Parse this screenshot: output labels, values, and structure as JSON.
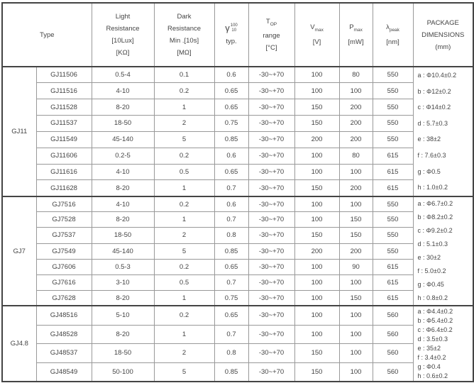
{
  "header": {
    "type": "Type",
    "light_resistance": [
      "Light",
      "Resistance",
      "[10Lux]",
      "[KΩ]"
    ],
    "dark_resistance": [
      "Dark",
      "Resistance",
      "Min .[10s]",
      "[MΩ]"
    ],
    "gamma": {
      "symbol": "γ",
      "sup": "100",
      "sub": "10",
      "label": "typ."
    },
    "top": {
      "symbol": "T",
      "sub": "OP",
      "line2": "range",
      "line3": "[°C]"
    },
    "vmax": {
      "symbol": "V",
      "sub": "max",
      "unit": "[V]"
    },
    "pmax": {
      "symbol": "P",
      "sub": "max",
      "unit": "[mW]"
    },
    "lpeak": {
      "symbol": "λ",
      "sub": "peak",
      "unit": "[nm]"
    },
    "package": [
      "PACKAGE",
      "DIMENSIONS",
      "(mm)"
    ]
  },
  "groups": [
    {
      "name": "GJ11",
      "rows": [
        [
          "GJ11506",
          "0.5-4",
          "0.1",
          "0.6",
          "-30~+70",
          "100",
          "80",
          "550"
        ],
        [
          "GJ11516",
          "4-10",
          "0.2",
          "0.65",
          "-30~+70",
          "100",
          "100",
          "550"
        ],
        [
          "GJ11528",
          "8-20",
          "1",
          "0.65",
          "-30~+70",
          "150",
          "200",
          "550"
        ],
        [
          "GJ11537",
          "18-50",
          "2",
          "0.75",
          "-30~+70",
          "150",
          "200",
          "550"
        ],
        [
          "GJ11549",
          "45-140",
          "5",
          "0.85",
          "-30~+70",
          "200",
          "200",
          "550"
        ],
        [
          "GJ11606",
          "0.2-5",
          "0.2",
          "0.6",
          "-30~+70",
          "100",
          "80",
          "615"
        ],
        [
          "GJ11616",
          "4-10",
          "0.5",
          "0.65",
          "-30~+70",
          "100",
          "100",
          "615"
        ],
        [
          "GJ11628",
          "8-20",
          "1",
          "0.7",
          "-30~+70",
          "150",
          "200",
          "615"
        ]
      ],
      "package": [
        "a : Φ10.4±0.2",
        "b : Φ12±0.2",
        "c : Φ14±0.2",
        "d : 5.7±0.3",
        "e : 38±2",
        "f : 7.6±0.3",
        "g : Φ0.5",
        "h : 1.0±0.2"
      ]
    },
    {
      "name": "GJ7",
      "rows": [
        [
          "GJ7516",
          "4-10",
          "0.2",
          "0.6",
          "-30~+70",
          "100",
          "100",
          "550"
        ],
        [
          "GJ7528",
          "8-20",
          "1",
          "0.7",
          "-30~+70",
          "100",
          "150",
          "550"
        ],
        [
          "GJ7537",
          "18-50",
          "2",
          "0.8",
          "-30~+70",
          "150",
          "150",
          "550"
        ],
        [
          "GJ7549",
          "45-140",
          "5",
          "0.85",
          "-30~+70",
          "200",
          "200",
          "550"
        ],
        [
          "GJ7606",
          "0.5-3",
          "0.2",
          "0.65",
          "-30~+70",
          "100",
          "90",
          "615"
        ],
        [
          "GJ7616",
          "3-10",
          "0.5",
          "0.7",
          "-30~+70",
          "100",
          "100",
          "615"
        ],
        [
          "GJ7628",
          "8-20",
          "1",
          "0.75",
          "-30~+70",
          "100",
          "150",
          "615"
        ]
      ],
      "package": [
        "a : Φ6.7±0.2",
        "b : Φ8.2±0.2",
        "c : Φ9.2±0.2",
        "d : 5.1±0.3",
        "e : 30±2",
        "f : 5.0±0.2",
        "g : Φ0.45",
        "h : 0.8±0.2"
      ]
    },
    {
      "name": "GJ4.8",
      "rows": [
        [
          "GJ48516",
          "5-10",
          "0.2",
          "0.65",
          "-30~+70",
          "100",
          "100",
          "560"
        ],
        [
          "GJ48528",
          "8-20",
          "1",
          "0.7",
          "-30~+70",
          "100",
          "100",
          "560"
        ],
        [
          "GJ48537",
          "18-50",
          "2",
          "0.8",
          "-30~+70",
          "150",
          "100",
          "560"
        ],
        [
          "GJ48549",
          "50-100",
          "5",
          "0.85",
          "-30~+70",
          "150",
          "100",
          "560"
        ]
      ],
      "package": [
        "a : Φ4.4±0.2",
        "b : Φ5.4±0.2",
        "c : Φ6.4±0.2",
        "d : 3.5±0.3",
        "e : 35±2",
        "f : 3.4±0.2",
        "g : Φ0.4",
        "h : 0.6±0.2"
      ]
    }
  ]
}
